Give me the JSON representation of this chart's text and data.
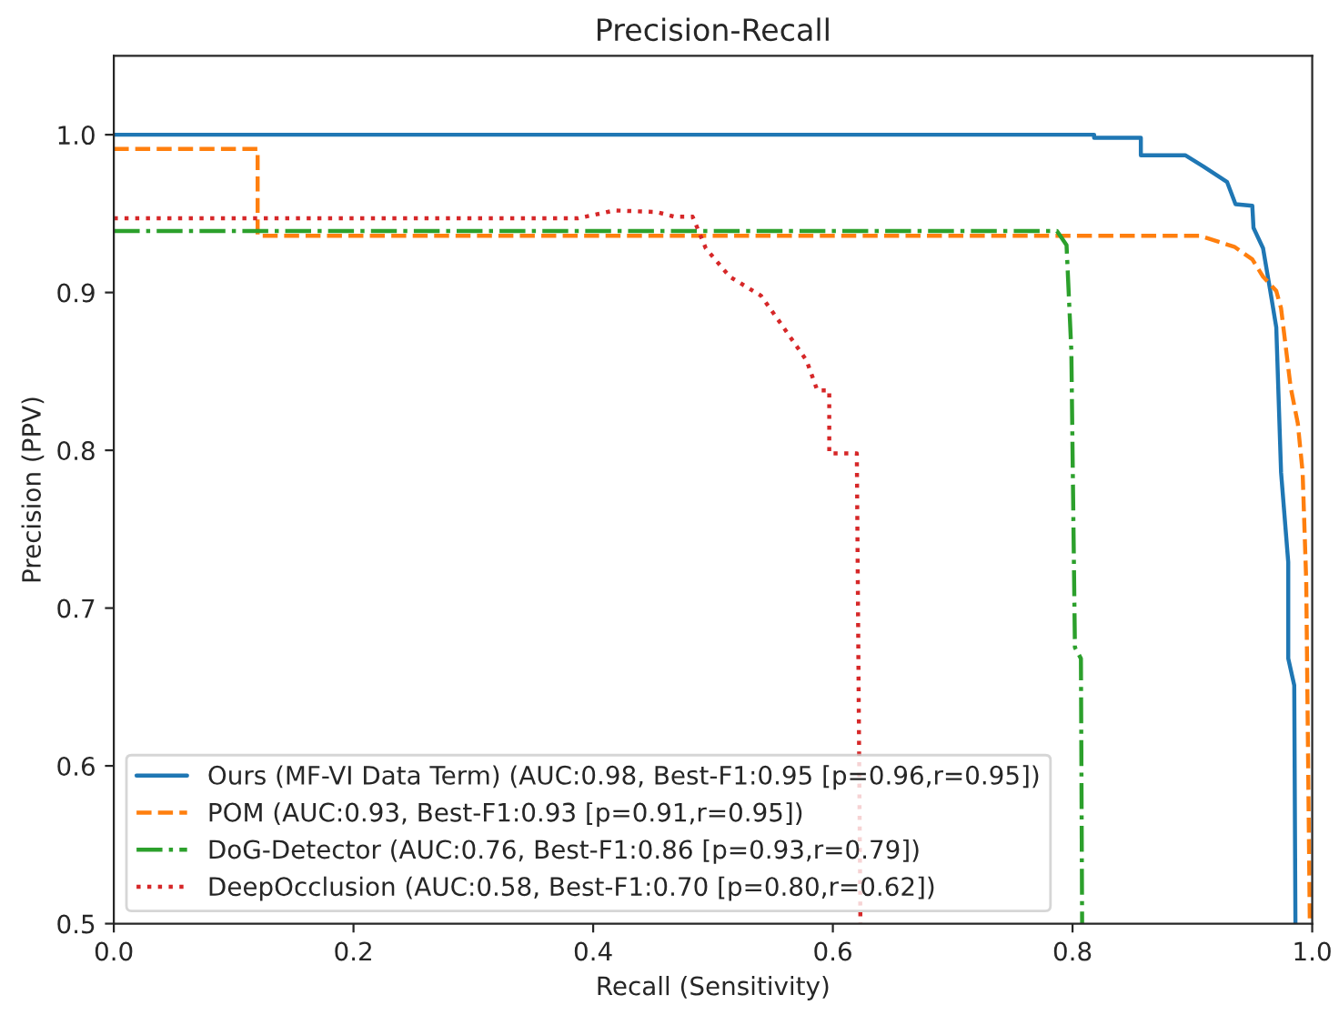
{
  "chart_data": {
    "type": "line",
    "title": "Precision-Recall",
    "xlabel": "Recall (Sensitivity)",
    "ylabel": "Precision (PPV)",
    "xlim": [
      0,
      1
    ],
    "ylim": [
      0.5,
      1.05
    ],
    "xticks": [
      {
        "value": 0,
        "label": "0.0"
      },
      {
        "value": 0.2,
        "label": "0.2"
      },
      {
        "value": 0.4,
        "label": "0.4"
      },
      {
        "value": 0.6,
        "label": "0.6"
      },
      {
        "value": 0.8,
        "label": "0.8"
      },
      {
        "value": 1,
        "label": "1.0"
      }
    ],
    "yticks": [
      {
        "value": 0.5,
        "label": "0.5"
      },
      {
        "value": 0.6,
        "label": "0.6"
      },
      {
        "value": 0.7,
        "label": "0.7"
      },
      {
        "value": 0.8,
        "label": "0.8"
      },
      {
        "value": 0.9,
        "label": "0.9"
      },
      {
        "value": 1,
        "label": "1.0"
      }
    ],
    "grid": false,
    "legend": "bottom left",
    "series": [
      {
        "name": "Ours (MF-VI Data Term) (AUC:0.98, Best-F1:0.95 [p=0.96,r=0.95])",
        "color": "#1f77b4",
        "line_style": "solid",
        "x": [
          0,
          0.818,
          0.818,
          0.857,
          0.857,
          0.894,
          0.909,
          0.929,
          0.936,
          0.95,
          0.951,
          0.959,
          0.965,
          0.97,
          0.974,
          0.98,
          0.98,
          0.985,
          0.986
        ],
        "values": [
          1.0,
          1.0,
          0.998,
          0.998,
          0.987,
          0.987,
          0.98,
          0.97,
          0.956,
          0.955,
          0.941,
          0.928,
          0.901,
          0.878,
          0.786,
          0.729,
          0.668,
          0.651,
          0.5
        ]
      },
      {
        "name": "POM (AUC:0.93, Best-F1:0.93 [p=0.91,r=0.95])",
        "color": "#ff7f0e",
        "line_style": "dashed",
        "x": [
          0,
          0.12,
          0.12,
          0.906,
          0.935,
          0.95,
          0.959,
          0.97,
          0.974,
          0.982,
          0.988,
          0.992,
          0.995,
          0.998
        ],
        "values": [
          0.991,
          0.991,
          0.936,
          0.936,
          0.929,
          0.921,
          0.91,
          0.901,
          0.89,
          0.84,
          0.817,
          0.786,
          0.717,
          0.5
        ]
      },
      {
        "name": "DoG-Detector (AUC:0.76, Best-F1:0.86 [p=0.93,r=0.79])",
        "color": "#2ca02c",
        "line_style": "dashdot",
        "x": [
          0,
          0.787,
          0.795,
          0.799,
          0.802,
          0.807,
          0.808
        ],
        "values": [
          0.939,
          0.939,
          0.93,
          0.863,
          0.675,
          0.668,
          0.5
        ]
      },
      {
        "name": "DeepOcclusion (AUC:0.58, Best-F1:0.70 [p=0.80,r=0.62])",
        "color": "#d62728",
        "line_style": "dotted",
        "x": [
          0,
          0.362,
          0.387,
          0.418,
          0.453,
          0.468,
          0.483,
          0.494,
          0.514,
          0.54,
          0.555,
          0.578,
          0.587,
          0.597,
          0.597,
          0.62,
          0.623
        ],
        "values": [
          0.947,
          0.947,
          0.947,
          0.952,
          0.951,
          0.948,
          0.948,
          0.928,
          0.91,
          0.898,
          0.882,
          0.857,
          0.838,
          0.838,
          0.798,
          0.798,
          0.5
        ]
      }
    ]
  }
}
